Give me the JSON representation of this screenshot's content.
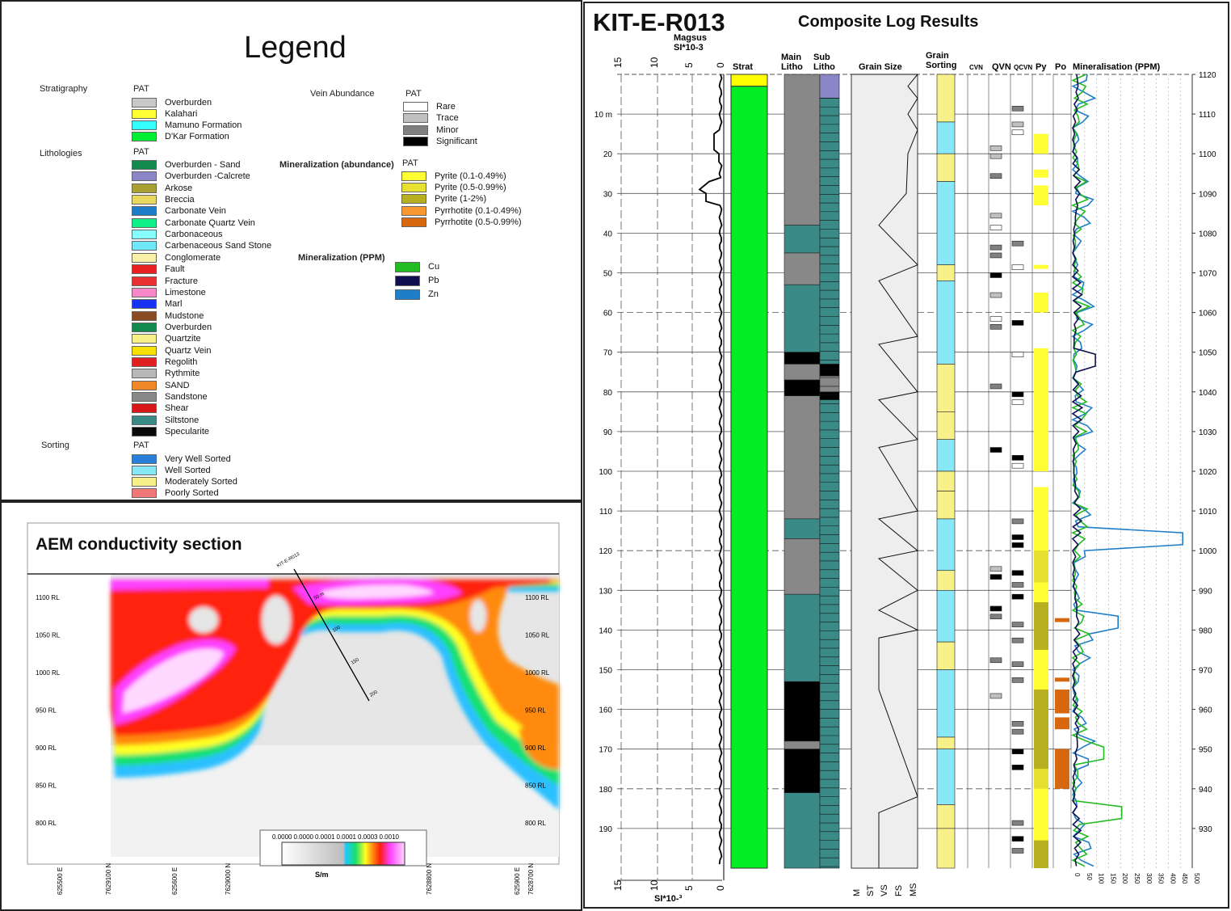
{
  "legend": {
    "title": "Legend",
    "stratigraphy": {
      "heading": "Stratigraphy",
      "pat": "PAT",
      "items": [
        {
          "label": "Overburden",
          "color": "#c8c8c8"
        },
        {
          "label": "Kalahari",
          "color": "#ffff33"
        },
        {
          "label": "Mamuno Formation",
          "color": "#33ffff"
        },
        {
          "label": "D'Kar Formation",
          "color": "#00ee33"
        }
      ]
    },
    "lithologies": {
      "heading": "Lithologies",
      "pat": "PAT",
      "items": [
        {
          "label": "Overburden - Sand",
          "color": "#128a4e"
        },
        {
          "label": "Overburden -Calcrete",
          "color": "#8a86c8"
        },
        {
          "label": "Arkose",
          "color": "#a8a032"
        },
        {
          "label": "Breccia",
          "color": "#e8d860"
        },
        {
          "label": "Carbonate Vein",
          "color": "#1c7cc8"
        },
        {
          "label": "Carbonate Quartz Vein",
          "color": "#10f088"
        },
        {
          "label": "Carbonaceous",
          "color": "#88ffff"
        },
        {
          "label": "Carbenaceous Sand Stone",
          "color": "#70e8f8"
        },
        {
          "label": "Conglomerate",
          "color": "#f8f0a8"
        },
        {
          "label": "Fault",
          "color": "#e82020"
        },
        {
          "label": "Fracture",
          "color": "#e83030"
        },
        {
          "label": "Limestone",
          "color": "#f888c8"
        },
        {
          "label": "Marl",
          "color": "#1830f0"
        },
        {
          "label": "Mudstone",
          "color": "#8a4a22"
        },
        {
          "label": "Overburden",
          "color": "#128a4e"
        },
        {
          "label": "Quartzite",
          "color": "#f8f088"
        },
        {
          "label": "Quartz Vein",
          "color": "#f8e000"
        },
        {
          "label": "Regolith",
          "color": "#e02020"
        },
        {
          "label": "Rythmite",
          "color": "#b8b8b8"
        },
        {
          "label": "SAND",
          "color": "#f08828"
        },
        {
          "label": "Sandstone",
          "color": "#888888"
        },
        {
          "label": "Shear",
          "color": "#d81818"
        },
        {
          "label": "Siltstone",
          "color": "#3a8a88"
        },
        {
          "label": "Specularite",
          "color": "#0a0a0a"
        }
      ]
    },
    "sorting": {
      "heading": "Sorting",
      "pat": "PAT",
      "items": [
        {
          "label": "Very Well Sorted",
          "color": "#2880d8"
        },
        {
          "label": "Well Sorted",
          "color": "#88e8f8"
        },
        {
          "label": "Moderately Sorted",
          "color": "#f8f088"
        },
        {
          "label": "Poorly Sorted",
          "color": "#f07878"
        }
      ]
    },
    "vein_abundance": {
      "heading": "Vein Abundance",
      "pat": "PAT",
      "items": [
        {
          "label": "Rare",
          "color": "#ffffff"
        },
        {
          "label": "Trace",
          "color": "#c0c0c0"
        },
        {
          "label": "Minor",
          "color": "#808080"
        },
        {
          "label": "Significant",
          "color": "#000000"
        }
      ]
    },
    "mineralization_abundance": {
      "heading": "Mineralization (abundance)",
      "pat": "PAT",
      "items": [
        {
          "label": "Pyrite (0.1-0.49%)",
          "color": "#ffff33"
        },
        {
          "label": "Pyrite (0.5-0.99%)",
          "color": "#e8e030"
        },
        {
          "label": "Pyrite (1-2%)",
          "color": "#b8b020"
        },
        {
          "label": "Pyrrhotite (0.1-0.49%)",
          "color": "#f89830"
        },
        {
          "label": "Pyrrhotite (0.5-0.99%)",
          "color": "#d86810"
        }
      ]
    },
    "mineralization_ppm": {
      "heading": "Mineralization (PPM)",
      "items": [
        {
          "label": "Cu",
          "color": "#22bb22"
        },
        {
          "label": "Pb",
          "color": "#101050"
        },
        {
          "label": "Zn",
          "color": "#1e7ec8"
        }
      ]
    }
  },
  "aem": {
    "title": "AEM conductivity section",
    "rl_labels": [
      "1100 RL",
      "1050 RL",
      "1000 RL",
      "950 RL",
      "900 RL",
      "850 RL",
      "800 RL"
    ],
    "easting_labels": [
      "625500 E",
      "7629100 N",
      "625600 E",
      "7629000 N",
      "7628800 N",
      "625900 E",
      "7628700 N"
    ],
    "drillhole_label": "KIT-E-R013",
    "drillhole_ticks": [
      "50 m",
      "100",
      "150",
      "200"
    ],
    "colorbar_values": [
      "0.0000",
      "0.0000",
      "0.0001",
      "0.0001",
      "0.0003",
      "0.0010"
    ],
    "colorbar_unit": "S/m"
  },
  "log": {
    "hole_id": "KIT-E-R013",
    "subtitle": "Composite Log Results",
    "columns": {
      "magsus": "Magsus\nSI*10-3",
      "strat": "Strat",
      "main_litho": "Main Litho",
      "sub_litho": "Sub Litho",
      "grain_size": "Grain Size",
      "grain_sorting": "Grain Sorting",
      "cvn": "CVN",
      "qvn": "QVN",
      "qcvn": "QCVN",
      "py": "Py",
      "po": "Po",
      "mineralisation": "Mineralisation (PPM)"
    },
    "magsus_ticks": [
      "15",
      "10",
      "5",
      "0"
    ],
    "magsus_axis_label": "SI*10-³",
    "depth_ticks": [
      "10 m",
      "20",
      "30",
      "40",
      "50",
      "60",
      "70",
      "80",
      "90",
      "100",
      "110",
      "120",
      "130",
      "140",
      "150",
      "160",
      "170",
      "180",
      "190"
    ],
    "rl_ticks": [
      "1120",
      "1110",
      "1100",
      "1090",
      "1080",
      "1070",
      "1060",
      "1050",
      "1040",
      "1030",
      "1020",
      "1010",
      "1000",
      "990",
      "980",
      "970",
      "960",
      "950",
      "940",
      "930"
    ],
    "grain_size_ticks": [
      "M",
      "ST",
      "VS",
      "FS",
      "MS"
    ],
    "ppm_ticks": [
      "0",
      "50",
      "100",
      "150",
      "200",
      "250",
      "300",
      "350",
      "400",
      "450",
      "500"
    ],
    "colors": {
      "strat_top": "#ffff00",
      "strat_main": "#00ee22",
      "sub_litho_top": "#8a86c8",
      "siltstone": "#3a8a88",
      "sandstone": "#888888",
      "black": "#000000",
      "sorting_well": "#88e8f8",
      "sorting_mod": "#f8f088",
      "py1": "#ffff33",
      "py2": "#e8e030",
      "py3": "#b8b020",
      "po": "#d86810",
      "cu": "#22bb22",
      "pb": "#101050",
      "zn": "#1e7ec8"
    }
  }
}
